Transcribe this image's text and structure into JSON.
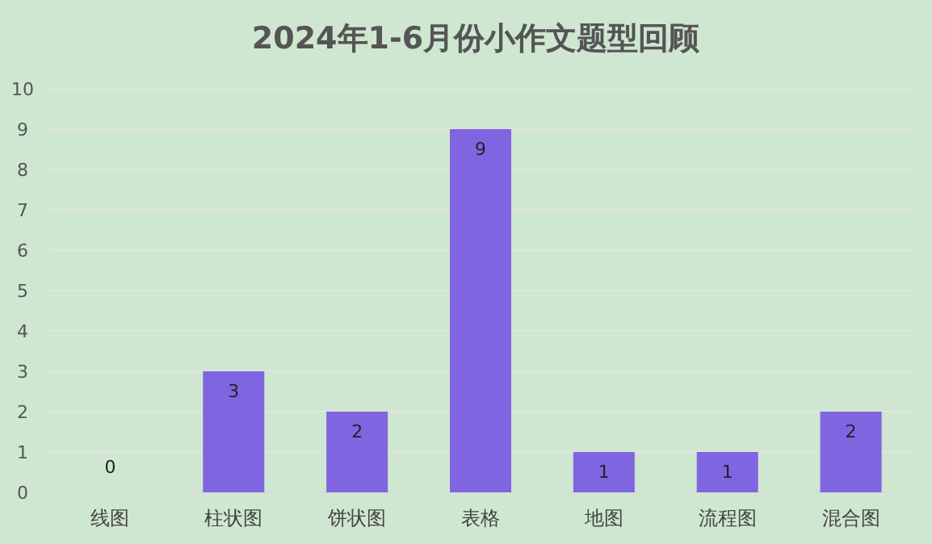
{
  "chart_data": {
    "type": "bar",
    "title": "2024年1-6月份小作文题型回顾",
    "categories": [
      "线图",
      "柱状图",
      "饼状图",
      "表格",
      "地图",
      "流程图",
      "混合图"
    ],
    "values": [
      0,
      3,
      2,
      9,
      1,
      1,
      2
    ],
    "color": "#8065e0",
    "ylim": [
      0,
      10
    ],
    "yticks": [
      0,
      1,
      2,
      3,
      4,
      5,
      6,
      7,
      8,
      9,
      10
    ],
    "grid": "y",
    "data_labels": true
  }
}
